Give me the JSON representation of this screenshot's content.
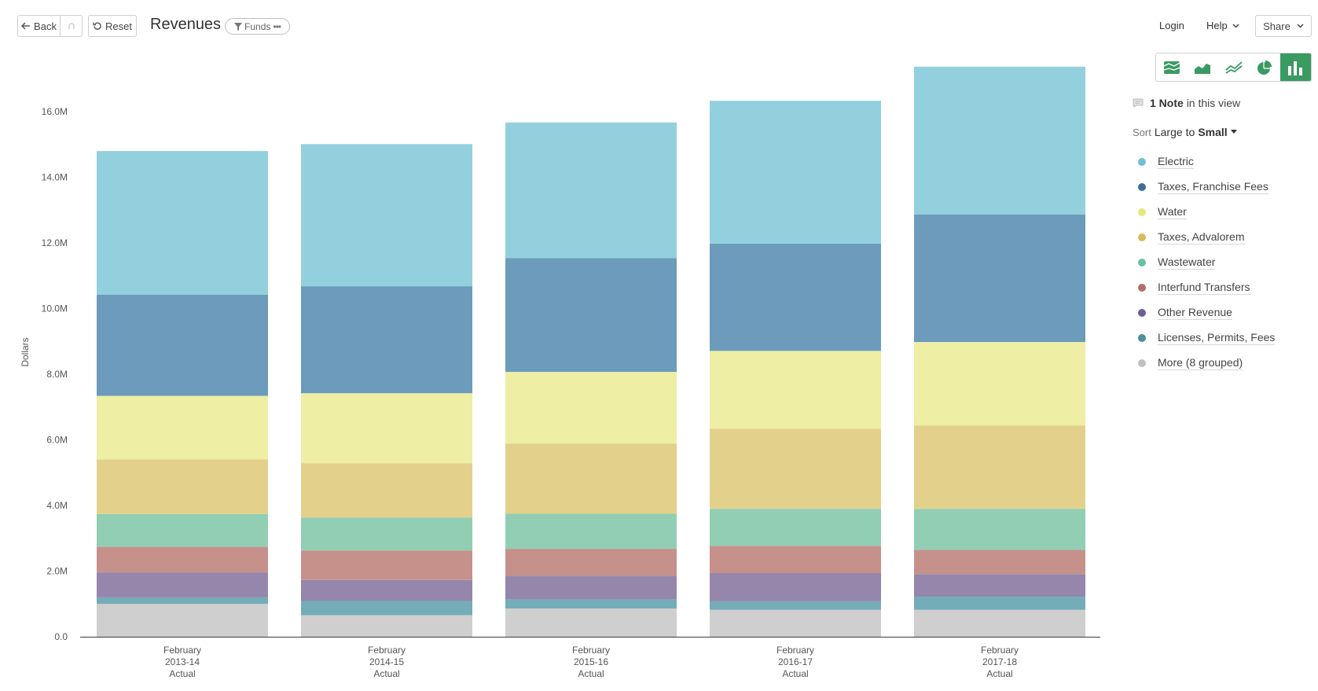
{
  "toolbar": {
    "back_label": "Back",
    "reset_label": "Reset",
    "title": "Revenues",
    "funds_label": "Funds"
  },
  "topnav": {
    "login_label": "Login",
    "help_label": "Help",
    "share_label": "Share"
  },
  "chart_switcher": {
    "options": [
      "stacked-area-icon",
      "area-icon",
      "line-icon",
      "pie-icon",
      "bar-icon"
    ],
    "active": "bar-icon",
    "accent_color": "#3a9a62"
  },
  "notes": {
    "count_label": "1 Note",
    "suffix": "in this view"
  },
  "sort": {
    "prefix": "Sort",
    "from": "Large",
    "to_word": "to",
    "to": "Small"
  },
  "chart_data": {
    "type": "bar",
    "stacked": true,
    "title": "Revenues",
    "xlabel": "",
    "ylabel": "Dollars",
    "ylim": [
      0,
      17000000
    ],
    "yticks": [
      0,
      2000000,
      4000000,
      6000000,
      8000000,
      10000000,
      12000000,
      14000000,
      16000000
    ],
    "ytick_labels": [
      "0.0",
      "2.0M",
      "4.0M",
      "6.0M",
      "8.0M",
      "10.0M",
      "12.0M",
      "14.0M",
      "16.0M"
    ],
    "categories": [
      [
        "February",
        "2013-14",
        "Actual"
      ],
      [
        "February",
        "2014-15",
        "Actual"
      ],
      [
        "February",
        "2015-16",
        "Actual"
      ],
      [
        "February",
        "2016-17",
        "Actual"
      ],
      [
        "February",
        "2017-18",
        "Actual"
      ]
    ],
    "stack_order_bottom_to_top": [
      "More (8 grouped)",
      "Licenses, Permits, Fees",
      "Other Revenue",
      "Interfund Transfers",
      "Wastewater",
      "Taxes, Advalorem",
      "Water",
      "Taxes, Franchise Fees",
      "Electric"
    ],
    "series": [
      {
        "name": "Electric",
        "color": "#93d0de",
        "legend_color": "#6fc0d6",
        "values": [
          4380000,
          4330000,
          4130000,
          4350000,
          4500000
        ]
      },
      {
        "name": "Taxes, Franchise Fees",
        "color": "#6c9bbb",
        "legend_color": "#3c6f97",
        "values": [
          3080000,
          3260000,
          3470000,
          3270000,
          3890000
        ]
      },
      {
        "name": "Water",
        "color": "#eeeea5",
        "legend_color": "#e6e67a",
        "values": [
          1940000,
          2130000,
          2190000,
          2370000,
          2540000
        ]
      },
      {
        "name": "Taxes, Advalorem",
        "color": "#e3d18b",
        "legend_color": "#d8bb5c",
        "values": [
          1660000,
          1660000,
          2130000,
          2440000,
          2540000
        ]
      },
      {
        "name": "Wastewater",
        "color": "#91ceb4",
        "legend_color": "#6cc0a1",
        "values": [
          1000000,
          1000000,
          1070000,
          1130000,
          1250000
        ]
      },
      {
        "name": "Interfund Transfers",
        "color": "#c6918b",
        "legend_color": "#b26f66",
        "values": [
          780000,
          900000,
          820000,
          830000,
          740000
        ]
      },
      {
        "name": "Other Revenue",
        "color": "#9586ab",
        "legend_color": "#6f5e92",
        "values": [
          760000,
          640000,
          720000,
          860000,
          690000
        ]
      },
      {
        "name": "Licenses, Permits, Fees",
        "color": "#74adb8",
        "legend_color": "#4f8e9b",
        "values": [
          200000,
          430000,
          280000,
          260000,
          400000
        ]
      },
      {
        "name": "More (8 grouped)",
        "color": "#cfcfcf",
        "legend_color": "#c0c0c0",
        "values": [
          1000000,
          660000,
          860000,
          820000,
          820000
        ]
      }
    ]
  }
}
